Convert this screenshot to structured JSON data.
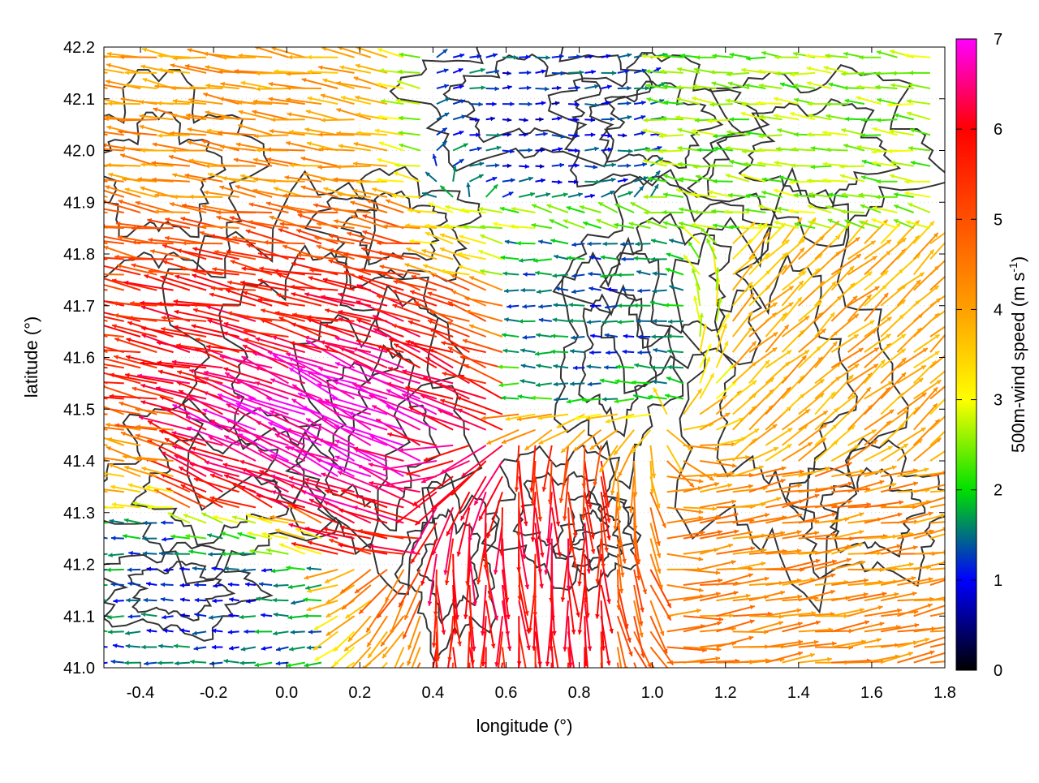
{
  "chart_data": {
    "type": "quiver",
    "xlabel": "longitude (°)",
    "ylabel": "latitude (°)",
    "xlim": [
      -0.5,
      1.8
    ],
    "ylim": [
      41.0,
      42.2
    ],
    "x_ticks": [
      -0.4,
      -0.2,
      0.0,
      0.2,
      0.4,
      0.6,
      0.8,
      1.0,
      1.2,
      1.4,
      1.6,
      1.8
    ],
    "y_ticks": [
      41.0,
      41.1,
      41.2,
      41.3,
      41.4,
      41.5,
      41.6,
      41.7,
      41.8,
      41.9,
      42.0,
      42.1,
      42.2
    ],
    "x_tick_labels": [
      "-0.4",
      "-0.2",
      "0.0",
      "0.2",
      "0.4",
      "0.6",
      "0.8",
      "1.0",
      "1.2",
      "1.4",
      "1.6",
      "1.8"
    ],
    "y_tick_labels": [
      "41.0",
      "41.1",
      "41.2",
      "41.3",
      "41.4",
      "41.5",
      "41.6",
      "41.7",
      "41.8",
      "41.9",
      "42.0",
      "42.1",
      "42.2"
    ],
    "colorbar": {
      "label": "500m-wind speed (m s",
      "label_sup": "-1",
      "label_end": ")",
      "range": [
        0,
        7
      ],
      "ticks": [
        0,
        1,
        2,
        3,
        4,
        5,
        6,
        7
      ],
      "tick_labels": [
        "0",
        "1",
        "2",
        "3",
        "4",
        "5",
        "6",
        "7"
      ],
      "palette": [
        {
          "value": 0,
          "color": "#000000"
        },
        {
          "value": 1,
          "color": "#0000ff"
        },
        {
          "value": 2,
          "color": "#00e000"
        },
        {
          "value": 3,
          "color": "#ffff00"
        },
        {
          "value": 4,
          "color": "#ffa000"
        },
        {
          "value": 5,
          "color": "#ff5000"
        },
        {
          "value": 6,
          "color": "#ff0000"
        },
        {
          "value": 7,
          "color": "#ff00ff"
        }
      ]
    },
    "grid": true,
    "contour_color": "#333333",
    "wind_field_regions": [
      {
        "region": "northwest",
        "lon": [
          -0.5,
          0.3
        ],
        "lat": [
          41.75,
          42.2
        ],
        "u": -3.8,
        "v": 0.5,
        "speed": 4.2
      },
      {
        "region": "west-central",
        "lon": [
          -0.5,
          0.4
        ],
        "lat": [
          41.5,
          41.9
        ],
        "u": -5.5,
        "v": 1.0,
        "speed": 5.8
      },
      {
        "region": "southwest-core",
        "lon": [
          -0.3,
          0.6
        ],
        "lat": [
          41.2,
          41.75
        ],
        "u": -6.5,
        "v": 3.0,
        "speed": 7.0
      },
      {
        "region": "far-west-south",
        "lon": [
          -0.5,
          0.1
        ],
        "lat": [
          41.0,
          41.3
        ],
        "u": -0.8,
        "v": 0.0,
        "speed": 1.2
      },
      {
        "region": "south-central",
        "lon": [
          0.4,
          0.9
        ],
        "lat": [
          41.0,
          41.45
        ],
        "u": 0.3,
        "v": -5.8,
        "speed": 6.0
      },
      {
        "region": "north-central",
        "lon": [
          0.4,
          1.0
        ],
        "lat": [
          41.9,
          42.2
        ],
        "u": 0.6,
        "v": 0.0,
        "speed": 1.0
      },
      {
        "region": "center",
        "lon": [
          0.6,
          1.1
        ],
        "lat": [
          41.5,
          41.85
        ],
        "u": -1.0,
        "v": 0.0,
        "speed": 1.3
      },
      {
        "region": "north-east",
        "lon": [
          1.0,
          1.8
        ],
        "lat": [
          41.85,
          42.2
        ],
        "u": -2.3,
        "v": 0.2,
        "speed": 2.5
      },
      {
        "region": "east-central",
        "lon": [
          1.2,
          1.8
        ],
        "lat": [
          41.4,
          41.85
        ],
        "u": 3.0,
        "v": 2.6,
        "speed": 4.0
      },
      {
        "region": "east-south",
        "lon": [
          1.0,
          1.8
        ],
        "lat": [
          41.0,
          41.4
        ],
        "u": 4.2,
        "v": 0.7,
        "speed": 4.3
      }
    ]
  }
}
